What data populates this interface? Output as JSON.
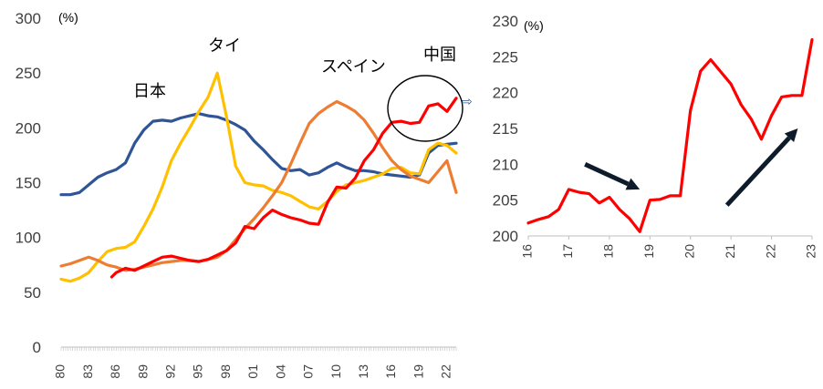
{
  "chart_data": [
    {
      "type": "line",
      "title": "",
      "unit_label": "(%)",
      "ylim": [
        0,
        300
      ],
      "yticks": [
        "0",
        "50",
        "100",
        "150",
        "200",
        "250",
        "300"
      ],
      "xlim": [
        1980,
        2023
      ],
      "xticks": [
        "80",
        "83",
        "86",
        "89",
        "92",
        "95",
        "98",
        "01",
        "04",
        "07",
        "10",
        "13",
        "16",
        "19",
        "22"
      ],
      "grid": false,
      "series": [
        {
          "name": "日本",
          "color": "#2f5597",
          "x": [
            1980,
            1981,
            1982,
            1983,
            1984,
            1985,
            1986,
            1987,
            1988,
            1989,
            1990,
            1991,
            1992,
            1993,
            1994,
            1995,
            1996,
            1997,
            1998,
            1999,
            2000,
            2001,
            2002,
            2003,
            2004,
            2005,
            2006,
            2007,
            2008,
            2009,
            2010,
            2011,
            2012,
            2013,
            2014,
            2015,
            2016,
            2017,
            2018,
            2019,
            2020,
            2021,
            2022,
            2023
          ],
          "values": [
            139,
            139,
            141,
            148,
            155,
            159,
            162,
            168,
            186,
            198,
            206,
            207,
            206,
            209,
            211,
            213,
            211,
            210,
            207,
            203,
            198,
            188,
            180,
            171,
            163,
            161,
            162,
            157,
            159,
            164,
            168,
            164,
            161,
            161,
            160,
            158,
            157,
            156,
            155,
            157,
            177,
            184,
            185,
            186
          ]
        },
        {
          "name": "タイ",
          "color": "#ffc000",
          "x": [
            1980,
            1981,
            1982,
            1983,
            1984,
            1985,
            1986,
            1987,
            1988,
            1989,
            1990,
            1991,
            1992,
            1993,
            1994,
            1995,
            1996,
            1997,
            1998,
            1999,
            2000,
            2001,
            2002,
            2003,
            2004,
            2005,
            2006,
            2007,
            2008,
            2009,
            2010,
            2011,
            2012,
            2013,
            2014,
            2015,
            2016,
            2017,
            2018,
            2019,
            2020,
            2021,
            2022,
            2023
          ],
          "values": [
            62,
            60,
            63,
            68,
            78,
            87,
            90,
            91,
            96,
            110,
            126,
            146,
            170,
            186,
            200,
            215,
            228,
            250,
            210,
            165,
            150,
            148,
            147,
            143,
            141,
            138,
            133,
            128,
            126,
            133,
            142,
            148,
            150,
            152,
            155,
            158,
            163,
            164,
            159,
            158,
            180,
            186,
            184,
            177
          ]
        },
        {
          "name": "スペイン",
          "color": "#ed7d31",
          "x": [
            1980,
            1981,
            1982,
            1983,
            1984,
            1985,
            1986,
            1987,
            1988,
            1989,
            1990,
            1991,
            1992,
            1993,
            1994,
            1995,
            1996,
            1997,
            1998,
            1999,
            2000,
            2001,
            2002,
            2003,
            2004,
            2005,
            2006,
            2007,
            2008,
            2009,
            2010,
            2011,
            2012,
            2013,
            2014,
            2015,
            2016,
            2017,
            2018,
            2019,
            2020,
            2021,
            2022,
            2023
          ],
          "values": [
            74,
            76,
            79,
            82,
            79,
            75,
            73,
            70,
            71,
            73,
            75,
            77,
            78,
            79,
            79,
            78,
            80,
            82,
            88,
            98,
            108,
            117,
            127,
            138,
            150,
            167,
            186,
            204,
            213,
            219,
            224,
            220,
            215,
            207,
            195,
            182,
            170,
            162,
            156,
            153,
            150,
            160,
            170,
            141
          ]
        },
        {
          "name": "中国",
          "color": "#ff0000",
          "x": [
            1985.5,
            1986,
            1987,
            1988,
            1989,
            1990,
            1991,
            1992,
            1993,
            1994,
            1995,
            1996,
            1997,
            1998,
            1999,
            2000,
            2001,
            2002,
            2003,
            2004,
            2005,
            2006,
            2007,
            2008,
            2009,
            2010,
            2011,
            2012,
            2013,
            2014,
            2015,
            2016,
            2017,
            2018,
            2019,
            2020,
            2021,
            2022,
            2023
          ],
          "values": [
            64,
            68,
            72,
            70,
            74,
            78,
            82,
            83,
            81,
            79,
            78,
            80,
            84,
            88,
            95,
            110,
            108,
            118,
            125,
            121,
            118,
            116,
            113,
            112,
            132,
            146,
            145,
            154,
            170,
            180,
            195,
            205,
            206,
            204,
            205,
            220,
            222,
            215,
            227
          ]
        }
      ],
      "annotations": [
        "⇨"
      ]
    },
    {
      "type": "line",
      "title": "",
      "unit_label": "(%)",
      "ylim": [
        200,
        230
      ],
      "yticks": [
        "200",
        "205",
        "210",
        "215",
        "220",
        "225",
        "230"
      ],
      "xlim": [
        2016,
        2023
      ],
      "xticks": [
        "16",
        "17",
        "18",
        "19",
        "20",
        "21",
        "22",
        "23"
      ],
      "grid": false,
      "series": [
        {
          "name": "",
          "color": "#ff0000",
          "x": [
            2016,
            2016.25,
            2016.5,
            2016.75,
            2017,
            2017.25,
            2017.5,
            2017.75,
            2018,
            2018.25,
            2018.5,
            2018.75,
            2019,
            2019.25,
            2019.5,
            2019.75,
            2020,
            2020.25,
            2020.5,
            2020.75,
            2021,
            2021.25,
            2021.5,
            2021.75,
            2022,
            2022.25,
            2022.5,
            2022.75,
            2023
          ],
          "values": [
            201.8,
            202.3,
            202.7,
            203.7,
            206.5,
            206.1,
            205.9,
            204.6,
            205.4,
            203.7,
            202.4,
            200.6,
            205.0,
            205.1,
            205.6,
            205.6,
            217.5,
            223.0,
            224.6,
            222.9,
            221.2,
            218.3,
            216.3,
            213.5,
            216.8,
            219.4,
            219.6,
            219.6,
            227.4
          ]
        }
      ],
      "annotations": [
        {
          "type": "arrow",
          "from": [
            2017.4,
            210.0
          ],
          "to": [
            2018.75,
            206.5
          ],
          "color": "#0d1b2a"
        },
        {
          "type": "arrow",
          "from": [
            2020.9,
            204.3
          ],
          "to": [
            2022.65,
            215.0
          ],
          "color": "#0d1b2a"
        }
      ]
    }
  ]
}
